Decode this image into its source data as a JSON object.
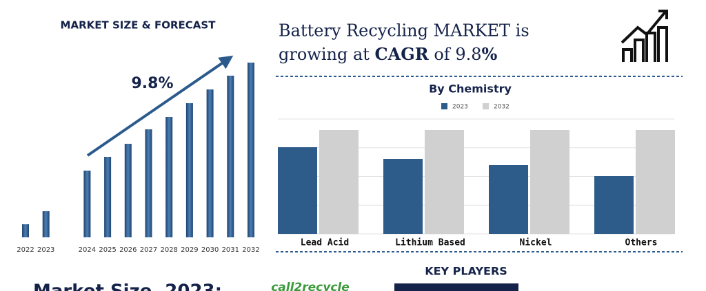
{
  "headline": {
    "parts": [
      "Battery Recycling MARKET is",
      "growing at",
      "CAGR",
      "of 9.8",
      "%"
    ]
  },
  "key_players": {
    "title": "KEY PLAYERS",
    "logos": [
      "call2recycle"
    ]
  },
  "market_size": {
    "label": "Market Size, 2023:"
  },
  "chart_data": [
    {
      "type": "bar",
      "title": "MARKET SIZE & FORECAST",
      "annotation": "9.8%",
      "categories": [
        "2022",
        "2023",
        "2024",
        "2025",
        "2026",
        "2027",
        "2028",
        "2029",
        "2030",
        "2031",
        "2032"
      ],
      "values": [
        19,
        38,
        97,
        117,
        136,
        157,
        175,
        195,
        215,
        235,
        254
      ],
      "color": "#2b5a8c"
    },
    {
      "type": "grouped-bar",
      "title": "By Chemistry",
      "categories": [
        "Lead Acid",
        "Lithium Based",
        "Nickel",
        "Others"
      ],
      "series": [
        {
          "name": "2023",
          "color": "#2d5b8a",
          "values": [
            126,
            109,
            100,
            84
          ]
        },
        {
          "name": "2032",
          "color": "#d0d0d0",
          "values": [
            151,
            151,
            151,
            151
          ]
        }
      ],
      "grid": true,
      "legend": "top"
    }
  ]
}
